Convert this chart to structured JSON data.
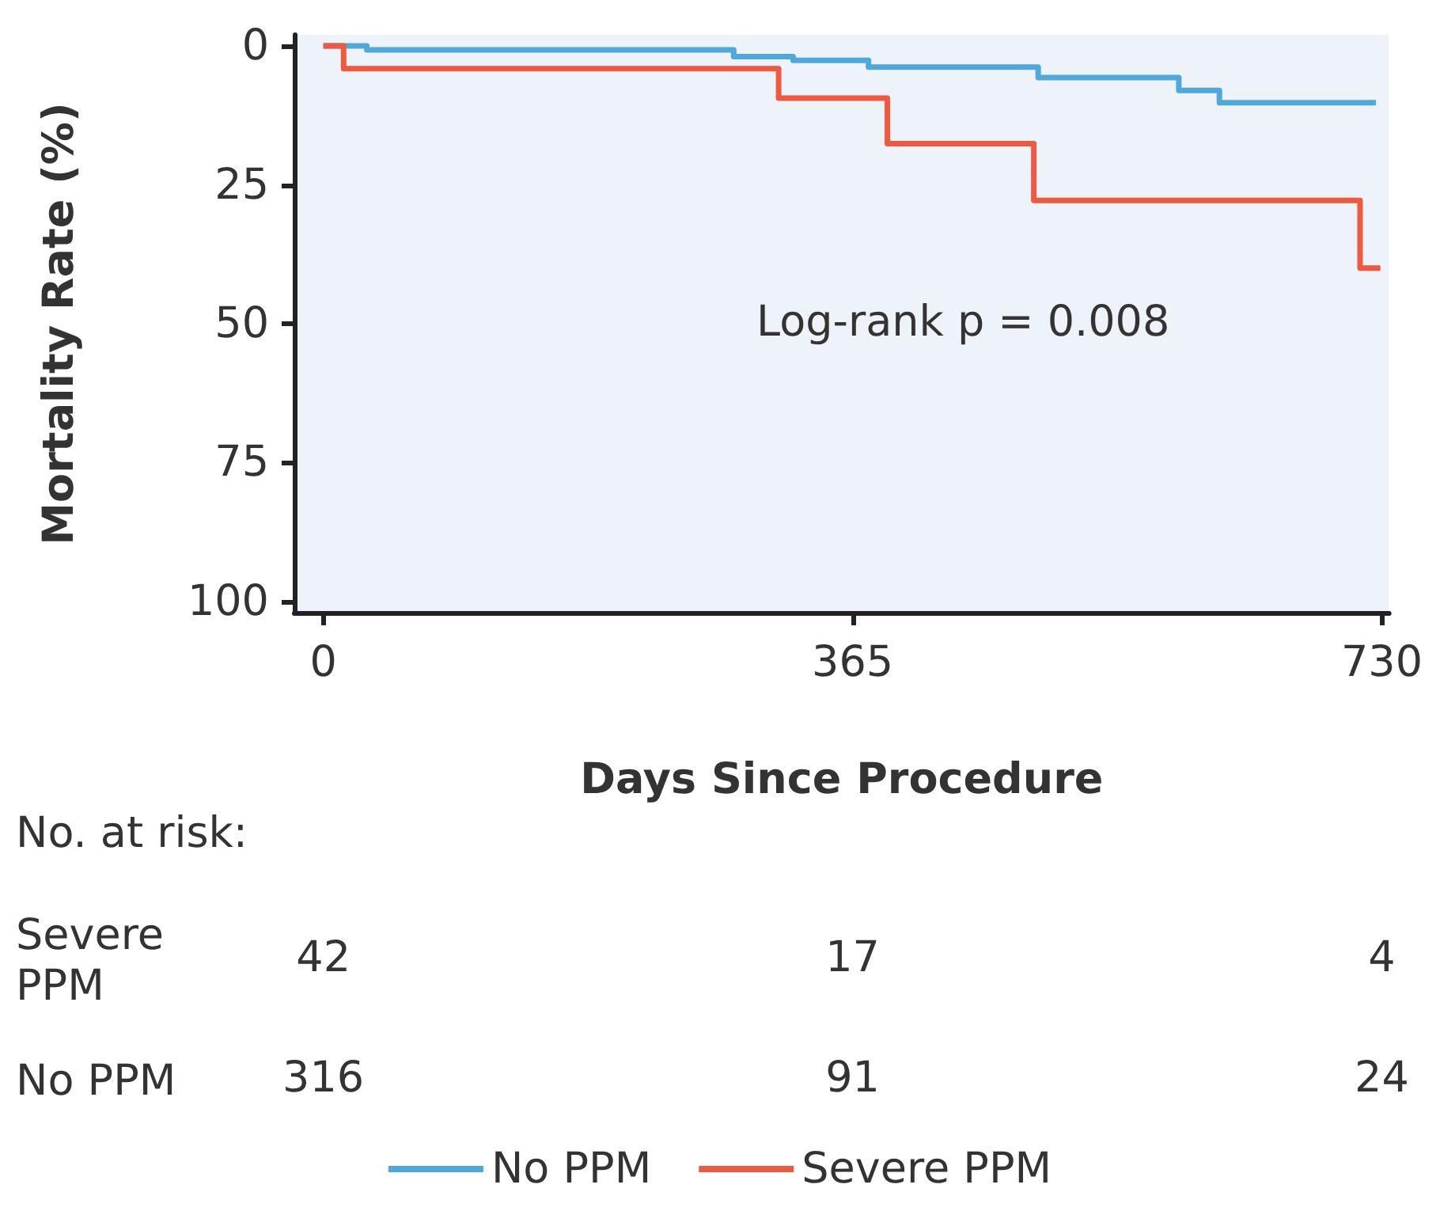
{
  "chart_data": {
    "type": "step",
    "xlabel": "Days Since Procedure",
    "ylabel": "Mortality Rate (%)",
    "xlim": [
      -20,
      735
    ],
    "xticks": [
      0,
      365,
      730
    ],
    "ylim": [
      102,
      -2
    ],
    "yticks": [
      0,
      25,
      50,
      75,
      100
    ],
    "grid": false,
    "legend": "bottom",
    "marker": "none",
    "line_style": "solid",
    "series": [
      {
        "name": "No PPM",
        "color": "#4ea8dc",
        "x": [
          0,
          30,
          283,
          324,
          376,
          493,
          590,
          618,
          726
        ],
        "values": [
          0,
          0.7,
          1.9,
          2.6,
          3.8,
          5.7,
          8,
          10.2,
          10.2
        ]
      },
      {
        "name": "Severe PPM",
        "color": "#f0583f",
        "x": [
          0,
          14,
          314,
          389,
          490,
          715,
          729
        ],
        "values": [
          0,
          4.1,
          9.4,
          17.6,
          27.8,
          40,
          40
        ]
      }
    ],
    "annotations": [
      "Log-rank p = 0.008",
      "No. at risk:",
      "Severe PPM",
      "42",
      "17",
      "4",
      "No PPM",
      "316",
      "91",
      "24"
    ]
  }
}
